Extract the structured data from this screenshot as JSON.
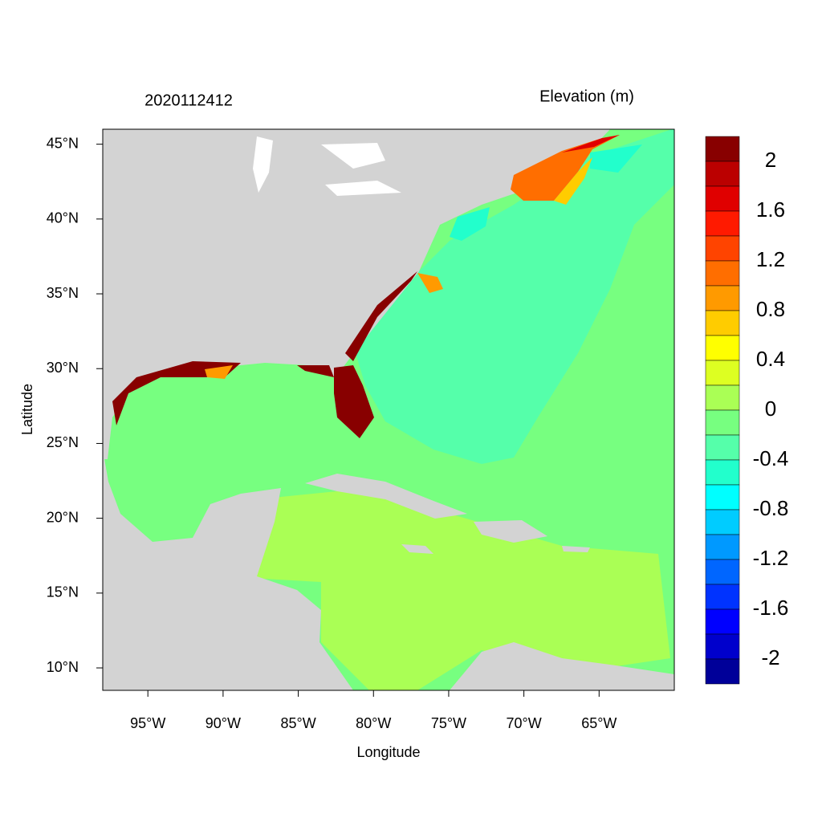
{
  "chart_data": {
    "type": "map",
    "title_left": "2020112412",
    "title_right": "Elevation (m)",
    "x_label": "Longitude",
    "y_label": "Latitude",
    "xlim": [
      -98,
      -60
    ],
    "ylim": [
      8.5,
      46
    ],
    "xticks": [
      {
        "value": -95,
        "label": "95°W"
      },
      {
        "value": -90,
        "label": "90°W"
      },
      {
        "value": -85,
        "label": "85°W"
      },
      {
        "value": -80,
        "label": "80°W"
      },
      {
        "value": -75,
        "label": "75°W"
      },
      {
        "value": -70,
        "label": "70°W"
      },
      {
        "value": -65,
        "label": "65°W"
      }
    ],
    "yticks": [
      {
        "value": 10,
        "label": "10°N"
      },
      {
        "value": 15,
        "label": "15°N"
      },
      {
        "value": 20,
        "label": "20°N"
      },
      {
        "value": 25,
        "label": "25°N"
      },
      {
        "value": 30,
        "label": "30°N"
      },
      {
        "value": 35,
        "label": "35°N"
      },
      {
        "value": 40,
        "label": "40°N"
      },
      {
        "value": 45,
        "label": "45°N"
      }
    ],
    "colorbar": {
      "colors": [
        "#880000",
        "#bb0000",
        "#e00000",
        "#ff1a00",
        "#ff4400",
        "#ff6e00",
        "#ff9a00",
        "#ffcc00",
        "#ffff00",
        "#ddff22",
        "#aaff55",
        "#77ff80",
        "#55ffaa",
        "#22ffcc",
        "#00ffff",
        "#00ccff",
        "#0099ff",
        "#0066ff",
        "#0033ff",
        "#0000ff",
        "#0000cc",
        "#000099"
      ],
      "labels": [
        2,
        1.6,
        1.2,
        0.8,
        0.4,
        0,
        -0.4,
        -0.8,
        -1.2,
        -1.6,
        -2
      ]
    }
  }
}
